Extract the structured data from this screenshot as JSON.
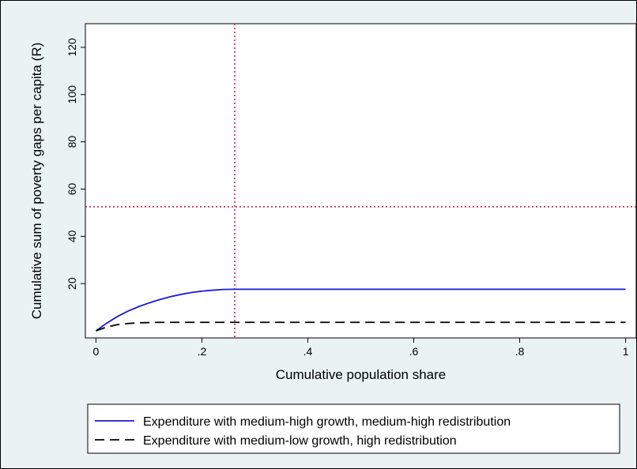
{
  "chart_data": {
    "type": "line",
    "title": "",
    "xlabel": "Cumulative population share",
    "ylabel": "Cumulative sum of poverty gaps per capita (R)",
    "xlim": [
      -0.02,
      1.02
    ],
    "ylim": [
      -3,
      130
    ],
    "x_ticks": [
      0,
      0.2,
      0.4,
      0.6,
      0.8,
      1
    ],
    "x_tick_labels": [
      "0",
      ".2",
      ".4",
      ".6",
      ".8",
      "1"
    ],
    "y_ticks": [
      20,
      40,
      60,
      80,
      100,
      120
    ],
    "y_tick_labels": [
      "20",
      "40",
      "60",
      "80",
      "100",
      "120"
    ],
    "grid": false,
    "legend_position": "bottom",
    "reference_lines": [
      {
        "orientation": "vertical",
        "value": 0.262,
        "color": "#c0143c",
        "style": "dotted"
      },
      {
        "orientation": "horizontal",
        "value": 52.5,
        "color": "#c0143c",
        "style": "dotted"
      }
    ],
    "series": [
      {
        "name": "Expenditure with medium-high growth, medium-high redistribution",
        "color": "#1a1ad6",
        "style": "solid",
        "x": [
          0,
          0.02,
          0.04,
          0.06,
          0.08,
          0.1,
          0.12,
          0.14,
          0.16,
          0.18,
          0.2,
          0.22,
          0.24,
          0.26,
          1
        ],
        "y": [
          0,
          3.2,
          6.0,
          8.3,
          10.2,
          11.8,
          13.2,
          14.4,
          15.4,
          16.2,
          16.8,
          17.2,
          17.5,
          17.6,
          17.6
        ]
      },
      {
        "name": "Expenditure with medium-low growth, high redistribution",
        "color": "#000000",
        "style": "dashed",
        "x": [
          0,
          0.02,
          0.04,
          0.06,
          0.08,
          0.1,
          0.12,
          1
        ],
        "y": [
          0,
          1.6,
          2.6,
          3.1,
          3.4,
          3.5,
          3.6,
          3.6
        ]
      }
    ]
  }
}
